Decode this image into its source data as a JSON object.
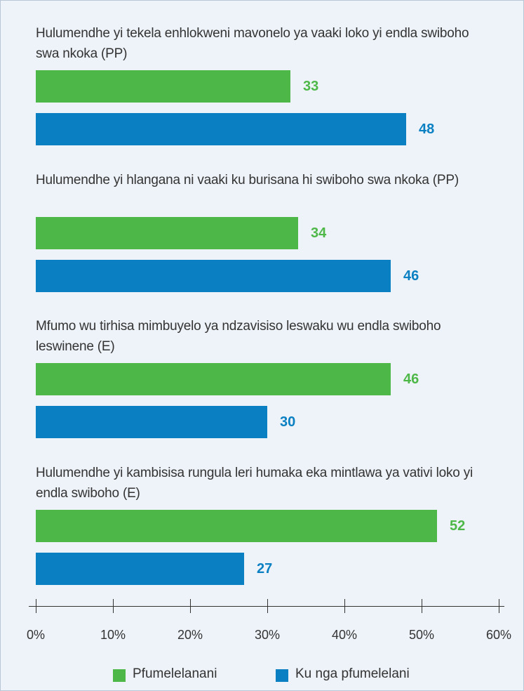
{
  "chart_data": {
    "type": "bar",
    "orientation": "horizontal",
    "categories": [
      "Hulumendhe yi tekela enhlokweni mavonelo ya vaaki loko yi endla swiboho swa nkoka (PP)",
      "Hulumendhe yi hlangana ni vaaki ku burisana hi swiboho swa nkoka (PP)",
      "Mfumo wu tirhisa mimbuyelo ya ndzavisiso leswaku wu endla swiboho leswinene (E)",
      "Hulumendhe yi kambisisa rungula leri humaka eka mintlawa ya vativi loko yi endla swiboho (E)"
    ],
    "series": [
      {
        "name": "Pfumelelanani",
        "color": "#4db848",
        "values": [
          33,
          34,
          46,
          52
        ]
      },
      {
        "name": "Ku nga pfumelelani",
        "color": "#0a80c3",
        "values": [
          48,
          46,
          30,
          27
        ]
      }
    ],
    "xlim": [
      0,
      60
    ],
    "xticks": [
      {
        "value": 0,
        "label": "0%"
      },
      {
        "value": 10,
        "label": "10%"
      },
      {
        "value": 20,
        "label": "20%"
      },
      {
        "value": 30,
        "label": "30%"
      },
      {
        "value": 40,
        "label": "40%"
      },
      {
        "value": 50,
        "label": "50%"
      },
      {
        "value": 60,
        "label": "60%"
      }
    ],
    "legend": "bottom"
  }
}
